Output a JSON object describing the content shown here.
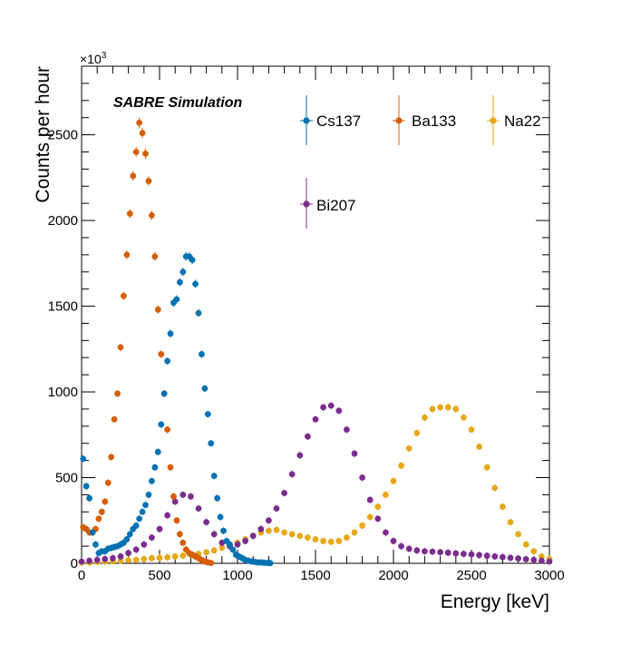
{
  "chart_data": {
    "type": "scatter",
    "title": "",
    "annotation": "SABRE Simulation",
    "xlabel": "Energy [keV]",
    "ylabel": "Counts per hour",
    "y_multiplier": "×10",
    "y_multiplier_exp": "3",
    "xlim": [
      0,
      3000
    ],
    "ylim": [
      0,
      2900
    ],
    "x_ticks": [
      0,
      500,
      1000,
      1500,
      2000,
      2500,
      3000
    ],
    "x_tick_labels": [
      "0",
      "500",
      "1000",
      "1500",
      "2000",
      "2500",
      "3000"
    ],
    "y_ticks": [
      0,
      500,
      1000,
      1500,
      2000,
      2500
    ],
    "y_tick_labels": [
      "0",
      "500",
      "1000",
      "1500",
      "2000",
      "2500"
    ],
    "legend_position": "top-right",
    "series": [
      {
        "name": "Cs137",
        "color": "#0072b2",
        "x": [
          10,
          30,
          50,
          70,
          90,
          110,
          130,
          150,
          170,
          190,
          210,
          230,
          250,
          270,
          290,
          310,
          330,
          350,
          370,
          390,
          410,
          430,
          450,
          470,
          490,
          510,
          530,
          550,
          570,
          590,
          610,
          630,
          650,
          670,
          690,
          710,
          730,
          750,
          770,
          790,
          810,
          830,
          850,
          870,
          890,
          910,
          930,
          950,
          970,
          990,
          1010,
          1030,
          1050,
          1070,
          1090,
          1110,
          1130,
          1150,
          1170,
          1190,
          1210
        ],
        "y": [
          610,
          450,
          380,
          180,
          110,
          60,
          70,
          70,
          85,
          90,
          95,
          100,
          110,
          120,
          140,
          170,
          200,
          220,
          260,
          300,
          340,
          400,
          480,
          560,
          650,
          810,
          990,
          1180,
          1340,
          1520,
          1540,
          1640,
          1700,
          1790,
          1790,
          1770,
          1630,
          1460,
          1220,
          1020,
          870,
          700,
          510,
          380,
          270,
          190,
          130,
          110,
          80,
          50,
          40,
          30,
          20,
          15,
          10,
          8,
          5,
          5,
          3,
          2,
          1
        ]
      },
      {
        "name": "Ba133",
        "color": "#d55e00",
        "x": [
          10,
          30,
          50,
          70,
          90,
          110,
          130,
          150,
          170,
          190,
          210,
          230,
          250,
          270,
          290,
          310,
          330,
          350,
          370,
          390,
          410,
          430,
          450,
          470,
          490,
          510,
          530,
          550,
          570,
          590,
          610,
          630,
          650,
          670,
          690,
          710,
          730,
          750,
          770,
          790,
          810,
          830
        ],
        "y": [
          210,
          200,
          180,
          180,
          200,
          260,
          300,
          360,
          470,
          620,
          840,
          990,
          1260,
          1560,
          1800,
          2040,
          2260,
          2400,
          2570,
          2510,
          2390,
          2230,
          2030,
          1790,
          1480,
          1220,
          990,
          780,
          560,
          390,
          250,
          170,
          120,
          80,
          60,
          50,
          40,
          30,
          20,
          10,
          5,
          2
        ]
      },
      {
        "name": "Na22",
        "color": "#e6a817",
        "x": [
          0,
          50,
          100,
          150,
          200,
          250,
          300,
          350,
          400,
          450,
          500,
          550,
          600,
          650,
          700,
          750,
          800,
          850,
          900,
          950,
          1000,
          1050,
          1100,
          1150,
          1200,
          1250,
          1300,
          1350,
          1400,
          1450,
          1500,
          1550,
          1600,
          1650,
          1700,
          1750,
          1800,
          1850,
          1900,
          1950,
          2000,
          2050,
          2100,
          2150,
          2200,
          2250,
          2300,
          2350,
          2400,
          2450,
          2500,
          2550,
          2600,
          2650,
          2700,
          2750,
          2800,
          2850,
          2900,
          2950,
          3000
        ],
        "y": [
          5,
          5,
          8,
          10,
          12,
          15,
          18,
          20,
          25,
          30,
          32,
          35,
          40,
          45,
          50,
          55,
          65,
          75,
          90,
          105,
          120,
          140,
          160,
          180,
          190,
          195,
          180,
          170,
          160,
          150,
          140,
          130,
          125,
          130,
          150,
          180,
          220,
          270,
          330,
          400,
          480,
          570,
          670,
          760,
          850,
          900,
          910,
          910,
          900,
          850,
          780,
          680,
          560,
          440,
          330,
          240,
          170,
          110,
          70,
          40,
          25
        ]
      },
      {
        "name": "Bi207",
        "color": "#7b2d8e",
        "x": [
          0,
          50,
          100,
          150,
          200,
          250,
          300,
          350,
          400,
          450,
          500,
          550,
          600,
          650,
          700,
          750,
          800,
          850,
          900,
          950,
          1000,
          1050,
          1100,
          1150,
          1200,
          1250,
          1300,
          1350,
          1400,
          1450,
          1500,
          1550,
          1600,
          1650,
          1700,
          1750,
          1800,
          1850,
          1900,
          1950,
          2000,
          2050,
          2100,
          2150,
          2200,
          2250,
          2300,
          2350,
          2400,
          2450,
          2500,
          2550,
          2600,
          2650,
          2700,
          2750,
          2800,
          2850,
          2900,
          2950,
          3000
        ],
        "y": [
          10,
          15,
          20,
          25,
          30,
          40,
          60,
          80,
          110,
          150,
          200,
          280,
          360,
          400,
          390,
          320,
          240,
          170,
          120,
          100,
          110,
          130,
          160,
          200,
          250,
          320,
          410,
          520,
          630,
          740,
          840,
          910,
          920,
          890,
          780,
          640,
          500,
          370,
          260,
          180,
          130,
          100,
          85,
          75,
          70,
          68,
          65,
          62,
          58,
          55,
          52,
          48,
          44,
          40,
          36,
          32,
          28,
          24,
          20,
          15,
          10
        ]
      }
    ]
  }
}
